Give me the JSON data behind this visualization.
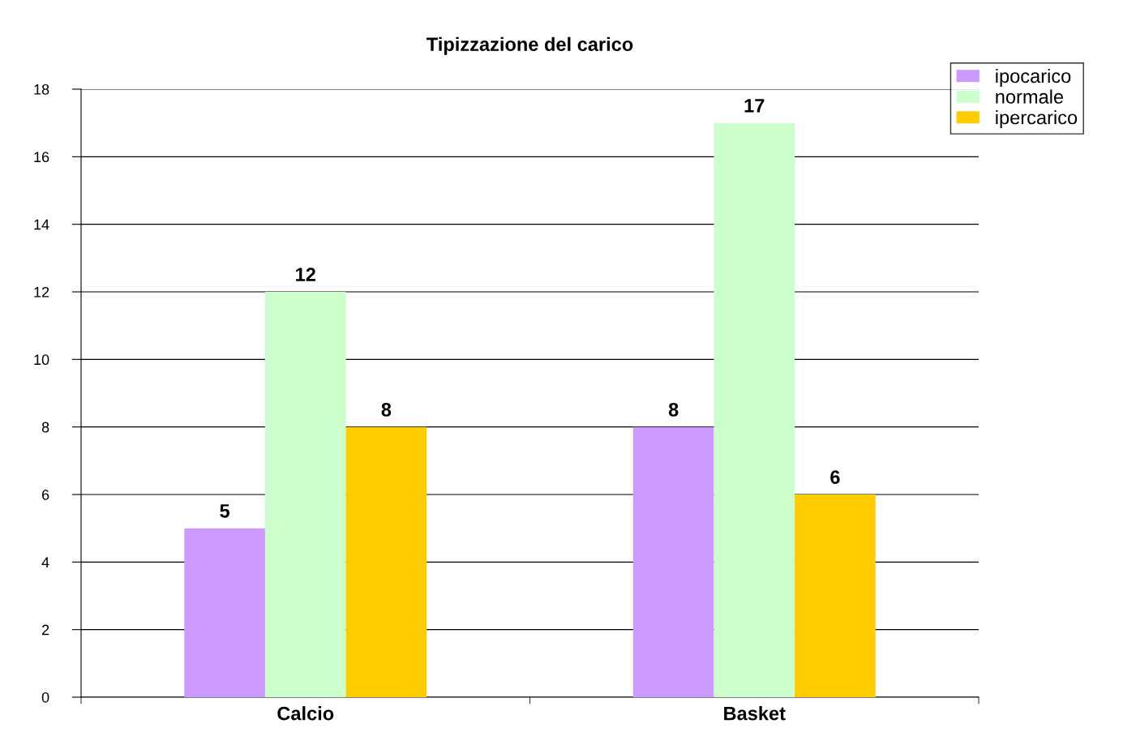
{
  "chart_data": {
    "type": "bar",
    "title": "Tipizzazione del carico",
    "categories": [
      "Calcio",
      "Basket"
    ],
    "series": [
      {
        "name": "ipocarico",
        "color": "#cc99ff",
        "values": [
          5,
          8
        ]
      },
      {
        "name": "normale",
        "color": "#ccffcc",
        "values": [
          12,
          17
        ]
      },
      {
        "name": "ipercarico",
        "color": "#ffcc00",
        "values": [
          8,
          6
        ]
      }
    ],
    "ylim": [
      0,
      18
    ],
    "yticks": [
      0,
      2,
      4,
      6,
      8,
      10,
      12,
      14,
      16,
      18
    ],
    "grid": "y",
    "legend": "top right",
    "data_labels": true
  }
}
